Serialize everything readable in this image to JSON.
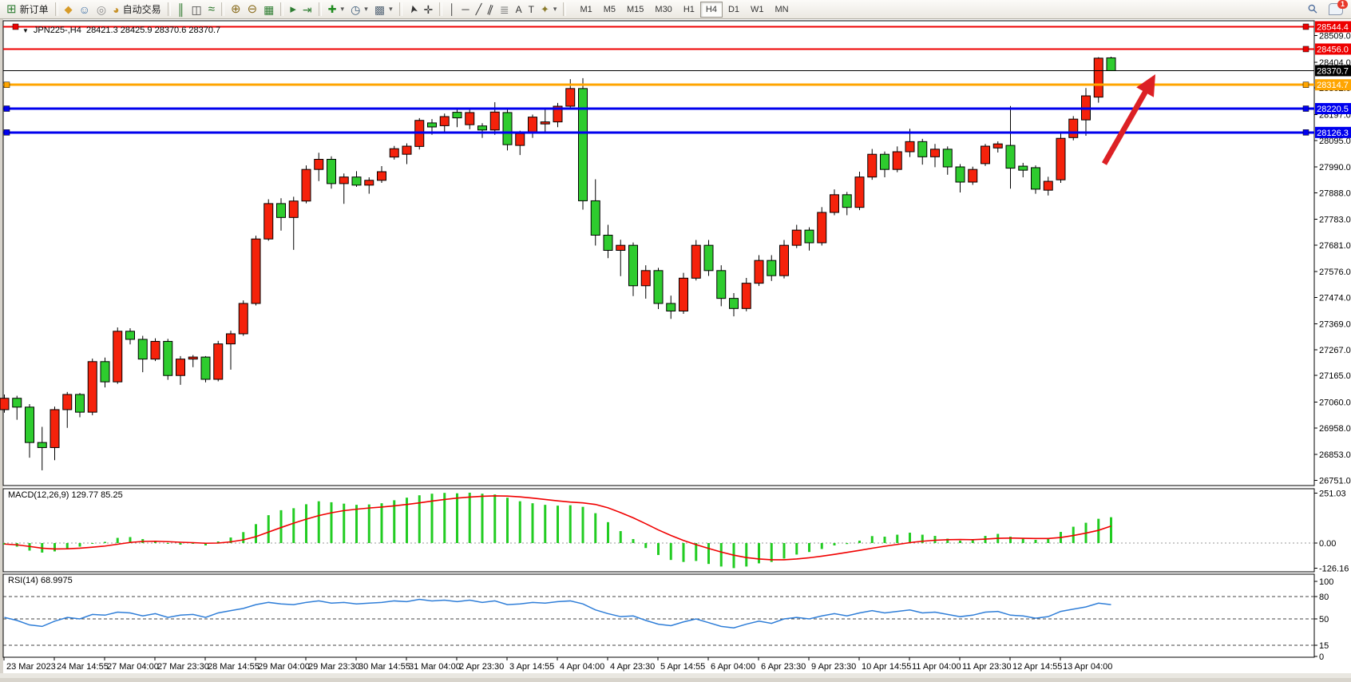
{
  "window": {
    "quote_line": "JPN225-,H4  28421.3 28425.9 28370.6 28370.7",
    "symbol": "JPN225-",
    "period": "H4",
    "open": "28421.3",
    "high": "28425.9",
    "low": "28370.6",
    "close": "28370.7"
  },
  "toolbar": {
    "buttons": [
      {
        "name": "new-order",
        "glyph": "new-order",
        "label": "新订单"
      },
      {
        "name": "sep"
      },
      {
        "name": "mql-community",
        "glyph": "diamond"
      },
      {
        "name": "market",
        "glyph": "person"
      },
      {
        "name": "signals",
        "glyph": "signal"
      },
      {
        "name": "autotrading",
        "glyph": "pot",
        "label": "自动交易"
      },
      {
        "name": "sep"
      },
      {
        "name": "chart-bars",
        "glyph": "bars"
      },
      {
        "name": "chart-candlesticks",
        "glyph": "candles"
      },
      {
        "name": "chart-line",
        "glyph": "line"
      },
      {
        "name": "sep"
      },
      {
        "name": "zoom-in",
        "glyph": "zoom-in"
      },
      {
        "name": "zoom-out",
        "glyph": "zoom-out"
      },
      {
        "name": "tile-windows",
        "glyph": "tiles"
      },
      {
        "name": "sep"
      },
      {
        "name": "auto-scroll",
        "glyph": "play"
      },
      {
        "name": "chart-shift",
        "glyph": "shift"
      },
      {
        "name": "sep"
      },
      {
        "name": "indicators",
        "glyph": "ind",
        "dropdown": true
      },
      {
        "name": "periods",
        "glyph": "clock",
        "dropdown": true
      },
      {
        "name": "templates",
        "glyph": "template",
        "dropdown": true
      },
      {
        "name": "sep"
      },
      {
        "name": "cursor",
        "glyph": "cursor"
      },
      {
        "name": "crosshair",
        "glyph": "cross"
      },
      {
        "name": "sep"
      },
      {
        "name": "vertical-line",
        "glyph": "vline"
      },
      {
        "name": "horizontal-line",
        "glyph": "hline"
      },
      {
        "name": "trend-line",
        "glyph": "tline"
      },
      {
        "name": "equidistant-channel",
        "glyph": "channel"
      },
      {
        "name": "fibonacci",
        "glyph": "fibo"
      },
      {
        "name": "text",
        "glyph": "A"
      },
      {
        "name": "text-label",
        "glyph": "T"
      },
      {
        "name": "arrows",
        "glyph": "star",
        "dropdown": true
      },
      {
        "name": "sep"
      }
    ],
    "timeframes": [
      "M1",
      "M5",
      "M15",
      "M30",
      "H1",
      "H4",
      "D1",
      "W1",
      "MN"
    ],
    "active_timeframe": "H4",
    "right": [
      {
        "name": "search"
      },
      {
        "name": "chat",
        "badge": "1"
      }
    ]
  },
  "chart_data": [
    {
      "type": "candlestick",
      "title": "JPN225-,H4",
      "ohlc_display": "28421.3 28425.9 28370.6 28370.7",
      "ylim": [
        26733,
        28570
      ],
      "price_ticks": [
        28509.0,
        28404.0,
        28302.0,
        28197.0,
        28095.0,
        27990.0,
        27888.0,
        27783.0,
        27681.0,
        27576.0,
        27474.0,
        27369.0,
        27267.0,
        27165.0,
        27060.0,
        26958.0,
        26853.0,
        26751.0
      ],
      "hlines": [
        {
          "price": 28544.4,
          "color": "#ee0000",
          "width": 2,
          "handles": [
            "left-top",
            "right"
          ]
        },
        {
          "price": 28456.0,
          "color": "#ee0000",
          "width": 2,
          "handles": [
            "right"
          ]
        },
        {
          "price": 28370.7,
          "color": "#000000",
          "width": 1,
          "current": true,
          "handles": []
        },
        {
          "price": 28314.7,
          "color": "#ffa500",
          "width": 3,
          "handles": [
            "left",
            "right"
          ]
        },
        {
          "price": 28220.5,
          "color": "#0000ee",
          "width": 3,
          "handles": [
            "left",
            "right"
          ]
        },
        {
          "price": 28126.3,
          "color": "#0000ee",
          "width": 3,
          "handles": [
            "left",
            "right"
          ]
        }
      ],
      "time_labels": [
        "23 Mar 2023",
        "24 Mar 14:55",
        "27 Mar 04:00",
        "27 Mar 23:30",
        "28 Mar 14:55",
        "29 Mar 04:00",
        "29 Mar 23:30",
        "30 Mar 14:55",
        "31 Mar 04:00",
        "2 Apr 23:30",
        "3 Apr 14:55",
        "4 Apr 04:00",
        "4 Apr 23:30",
        "5 Apr 14:55",
        "6 Apr 04:00",
        "6 Apr 23:30",
        "9 Apr 23:30",
        "10 Apr 14:55",
        "11 Apr 04:00",
        "11 Apr 23:30",
        "12 Apr 14:55",
        "13 Apr 04:00"
      ],
      "candles": [
        [
          27030,
          27090,
          27018,
          27075
        ],
        [
          27075,
          27085,
          26990,
          27040
        ],
        [
          27040,
          27052,
          26840,
          26900
        ],
        [
          26900,
          26962,
          26790,
          26880
        ],
        [
          26880,
          27042,
          26830,
          27030
        ],
        [
          27030,
          27100,
          26958,
          27090
        ],
        [
          27090,
          27096,
          27000,
          27020
        ],
        [
          27020,
          27232,
          27008,
          27220
        ],
        [
          27220,
          27236,
          27118,
          27140
        ],
        [
          27140,
          27355,
          27132,
          27340
        ],
        [
          27340,
          27352,
          27288,
          27308
        ],
        [
          27308,
          27322,
          27178,
          27230
        ],
        [
          27230,
          27312,
          27222,
          27300
        ],
        [
          27300,
          27310,
          27148,
          27165
        ],
        [
          27165,
          27242,
          27128,
          27230
        ],
        [
          27230,
          27246,
          27198,
          27238
        ],
        [
          27238,
          27242,
          27138,
          27150
        ],
        [
          27150,
          27302,
          27142,
          27290
        ],
        [
          27290,
          27342,
          27188,
          27330
        ],
        [
          27330,
          27462,
          27322,
          27450
        ],
        [
          27450,
          27718,
          27442,
          27705
        ],
        [
          27705,
          27862,
          27698,
          27845
        ],
        [
          27845,
          27866,
          27738,
          27790
        ],
        [
          27790,
          27872,
          27662,
          27855
        ],
        [
          27855,
          27996,
          27846,
          27980
        ],
        [
          27980,
          28046,
          27934,
          28020
        ],
        [
          28020,
          28032,
          27904,
          27924
        ],
        [
          27924,
          27964,
          27844,
          27950
        ],
        [
          27950,
          27973,
          27911,
          27918
        ],
        [
          27918,
          27949,
          27884,
          27937
        ],
        [
          27937,
          27993,
          27927,
          27971
        ],
        [
          28029,
          28073,
          28019,
          28062
        ],
        [
          28040,
          28083,
          28001,
          28072
        ],
        [
          28071,
          28183,
          28059,
          28174
        ],
        [
          28164,
          28179,
          28117,
          28148
        ],
        [
          28153,
          28201,
          28127,
          28189
        ],
        [
          28206,
          28219,
          28147,
          28184
        ],
        [
          28157,
          28217,
          28139,
          28205
        ],
        [
          28152,
          28163,
          28105,
          28136
        ],
        [
          28136,
          28246,
          28117,
          28207
        ],
        [
          28205,
          28217,
          28055,
          28078
        ],
        [
          28075,
          28133,
          28037,
          28122
        ],
        [
          28124,
          28197,
          28105,
          28187
        ],
        [
          28160,
          28223,
          28127,
          28168
        ],
        [
          28168,
          28243,
          28147,
          28230
        ],
        [
          28230,
          28337,
          28221,
          28300
        ],
        [
          28300,
          28341,
          27821,
          27856
        ],
        [
          27856,
          27941,
          27679,
          27720
        ],
        [
          27720,
          27761,
          27629,
          27660
        ],
        [
          27660,
          27702,
          27558,
          27680
        ],
        [
          27680,
          27691,
          27479,
          27520
        ],
        [
          27520,
          27601,
          27469,
          27580
        ],
        [
          27580,
          27591,
          27428,
          27450
        ],
        [
          27450,
          27481,
          27389,
          27420
        ],
        [
          27420,
          27571,
          27409,
          27550
        ],
        [
          27550,
          27701,
          27541,
          27680
        ],
        [
          27680,
          27701,
          27559,
          27580
        ],
        [
          27580,
          27601,
          27439,
          27470
        ],
        [
          27470,
          27491,
          27399,
          27430
        ],
        [
          27430,
          27551,
          27419,
          27530
        ],
        [
          27530,
          27641,
          27519,
          27620
        ],
        [
          27620,
          27641,
          27539,
          27560
        ],
        [
          27560,
          27701,
          27549,
          27680
        ],
        [
          27680,
          27761,
          27669,
          27740
        ],
        [
          27740,
          27751,
          27659,
          27690
        ],
        [
          27690,
          27831,
          27679,
          27810
        ],
        [
          27810,
          27901,
          27799,
          27880
        ],
        [
          27880,
          27891,
          27799,
          27830
        ],
        [
          27830,
          27971,
          27819,
          27950
        ],
        [
          27950,
          28061,
          27939,
          28040
        ],
        [
          28040,
          28051,
          27949,
          27980
        ],
        [
          27980,
          28071,
          27969,
          28050
        ],
        [
          28050,
          28141,
          28029,
          28090
        ],
        [
          28090,
          28101,
          27999,
          28030
        ],
        [
          28030,
          28081,
          27989,
          28060
        ],
        [
          28060,
          28071,
          27959,
          27990
        ],
        [
          27990,
          28001,
          27889,
          27930
        ],
        [
          27930,
          27991,
          27919,
          27980
        ],
        [
          28003,
          28081,
          27994,
          28072
        ],
        [
          28065,
          28091,
          28047,
          28081
        ],
        [
          28075,
          28231,
          27904,
          27985
        ],
        [
          27993,
          28006,
          27949,
          27977
        ],
        [
          27987,
          27996,
          27884,
          27902
        ],
        [
          27898,
          27951,
          27877,
          27933
        ],
        [
          27939,
          28122,
          27927,
          28103
        ],
        [
          28106,
          28191,
          28095,
          28179
        ],
        [
          28176,
          28302,
          28113,
          28271
        ],
        [
          28266,
          28424,
          28244,
          28420
        ],
        [
          28421.3,
          28425.9,
          28370.6,
          28370.7
        ]
      ],
      "colors": {
        "bull": "#f5220b",
        "bear": "#2ecc2e",
        "wick": "#000000"
      },
      "arrow": {
        "tail": [
          1383,
          181
        ],
        "head": [
          1447,
          69
        ],
        "color": "#dc2024"
      }
    },
    {
      "type": "macd",
      "label": "MACD(12,26,9) 129.77 85.25",
      "ticks": [
        251.03,
        0.0,
        -126.16
      ],
      "histogram": [
        -8,
        -18,
        -38,
        -48,
        -42,
        -28,
        -18,
        -4,
        6,
        26,
        30,
        20,
        12,
        -4,
        -8,
        -4,
        -12,
        8,
        28,
        55,
        95,
        140,
        165,
        175,
        195,
        210,
        205,
        198,
        192,
        194,
        200,
        215,
        228,
        240,
        248,
        252,
        250,
        253,
        248,
        244,
        228,
        210,
        200,
        192,
        188,
        190,
        182,
        150,
        105,
        60,
        20,
        -25,
        -60,
        -85,
        -95,
        -90,
        -105,
        -118,
        -126,
        -118,
        -102,
        -95,
        -78,
        -58,
        -45,
        -30,
        -12,
        -5,
        12,
        35,
        32,
        42,
        52,
        42,
        36,
        22,
        12,
        16,
        36,
        46,
        32,
        26,
        16,
        22,
        56,
        82,
        102,
        122,
        129.77
      ],
      "signal": [
        -5,
        -9,
        -17,
        -26,
        -30,
        -29,
        -26,
        -21,
        -15,
        -6,
        3,
        8,
        9,
        7,
        4,
        2,
        -1,
        0,
        6,
        16,
        32,
        55,
        78,
        100,
        120,
        138,
        152,
        163,
        170,
        176,
        181,
        187,
        194,
        202,
        211,
        219,
        226,
        231,
        235,
        237,
        236,
        232,
        226,
        219,
        212,
        206,
        202,
        194,
        177,
        153,
        127,
        97,
        66,
        38,
        13,
        -8,
        -27,
        -45,
        -61,
        -73,
        -80,
        -84,
        -84,
        -80,
        -74,
        -66,
        -57,
        -47,
        -37,
        -26,
        -16,
        -7,
        2,
        9,
        14,
        17,
        18,
        17,
        20,
        24,
        25,
        24,
        23,
        23,
        28,
        38,
        50,
        64,
        85.25
      ],
      "colors": {
        "histogram": "#22cc22",
        "signal": "#f00000"
      }
    },
    {
      "type": "rsi",
      "label": "RSI(14) 68.9975",
      "ticks": [
        100,
        80,
        50,
        15,
        0
      ],
      "levels": [
        80,
        50,
        15
      ],
      "values": [
        52,
        48,
        42,
        40,
        47,
        52,
        50,
        56,
        55,
        59,
        58,
        54,
        57,
        52,
        55,
        56,
        52,
        58,
        61,
        64,
        69,
        72,
        70,
        69,
        72,
        74,
        71,
        72,
        70,
        71,
        72,
        74,
        73,
        76,
        74,
        75,
        73,
        75,
        72,
        74,
        69,
        70,
        72,
        71,
        73,
        74,
        70,
        62,
        57,
        53,
        54,
        48,
        43,
        41,
        46,
        50,
        45,
        40,
        38,
        43,
        47,
        44,
        50,
        52,
        50,
        54,
        57,
        54,
        58,
        61,
        58,
        60,
        62,
        58,
        59,
        56,
        53,
        55,
        59,
        60,
        55,
        54,
        51,
        53,
        60,
        63,
        66,
        71,
        68.9975
      ],
      "color": "#2f7ed8"
    }
  ]
}
